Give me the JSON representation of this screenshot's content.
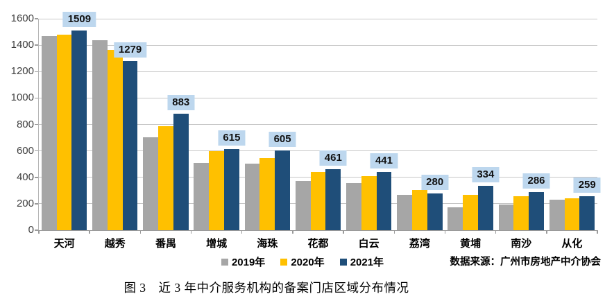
{
  "figure": {
    "caption": "图 3　近 3 年中介服务机构的备案门店区域分布情况",
    "source_note": "数据来源：广州市房地产中介协会"
  },
  "chart_data": {
    "type": "bar",
    "title": "",
    "xlabel": "",
    "ylabel": "",
    "categories": [
      "天河",
      "越秀",
      "番禺",
      "增城",
      "海珠",
      "花都",
      "白云",
      "荔湾",
      "黄埔",
      "南沙",
      "从化"
    ],
    "series": [
      {
        "name": "2019年",
        "color": "#a6a6a6",
        "values": [
          1470,
          1440,
          705,
          510,
          505,
          375,
          355,
          265,
          175,
          195,
          230
        ]
      },
      {
        "name": "2020年",
        "color": "#ffc000",
        "values": [
          1478,
          1365,
          785,
          600,
          545,
          440,
          410,
          305,
          265,
          255,
          240
        ]
      },
      {
        "name": "2021年",
        "color": "#1f4e79",
        "values": [
          1509,
          1279,
          883,
          615,
          605,
          461,
          441,
          280,
          334,
          286,
          259
        ]
      }
    ],
    "data_labels": {
      "series": "2021年",
      "values": [
        1509,
        1279,
        883,
        615,
        605,
        461,
        441,
        280,
        334,
        286,
        259
      ],
      "background": "#bdd7ee",
      "text_color": "#111111"
    },
    "ylim": [
      0,
      1600
    ],
    "yticks": [
      0,
      200,
      400,
      600,
      800,
      1000,
      1200,
      1400,
      1600
    ],
    "grid": true,
    "legend_position": "bottom-center"
  }
}
